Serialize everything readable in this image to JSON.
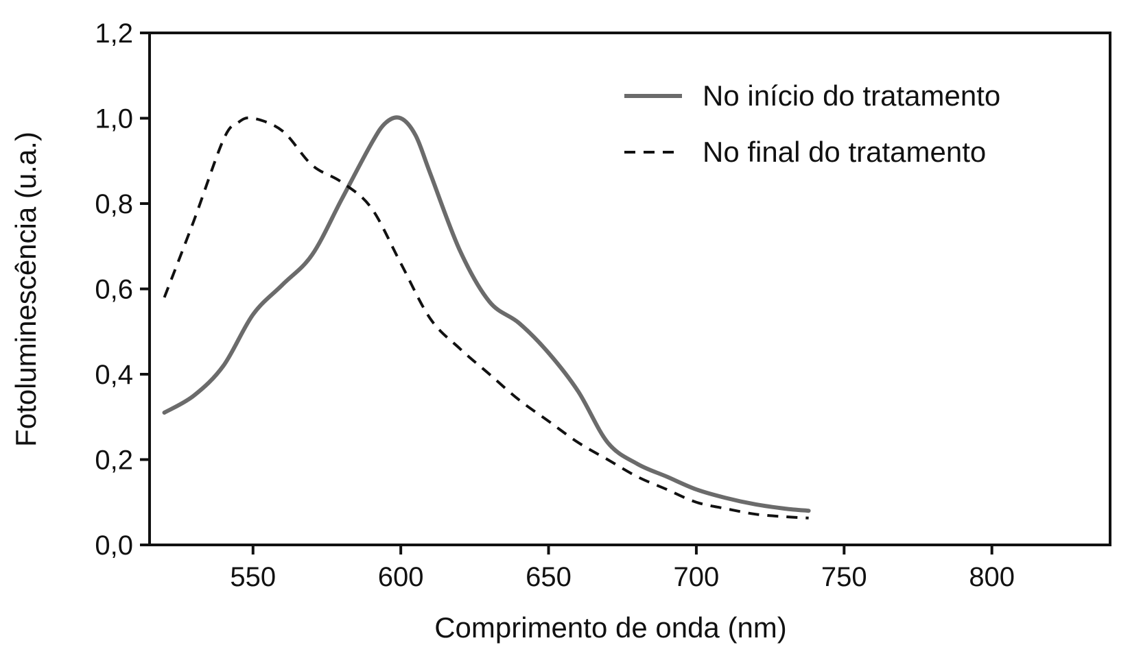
{
  "chart_data": {
    "type": "line",
    "title": "",
    "xlabel": "Comprimento de onda (nm)",
    "ylabel": "Fotoluminescência (u.a.)",
    "xlim": [
      515,
      840
    ],
    "ylim": [
      0,
      1.2
    ],
    "x_ticks": [
      550,
      600,
      650,
      700,
      750,
      800
    ],
    "y_ticks": [
      0.0,
      0.2,
      0.4,
      0.6,
      0.8,
      1.0,
      1.2
    ],
    "x_tick_labels": [
      "550",
      "600",
      "650",
      "700",
      "750",
      "800"
    ],
    "y_tick_labels": [
      "0,0",
      "0,2",
      "0,4",
      "0,6",
      "0,8",
      "1,0",
      "1,2"
    ],
    "grid": false,
    "legend_position": "top-right",
    "series": [
      {
        "name": "No início do tratamento",
        "style": "solid",
        "color": "#6b6b6b",
        "x": [
          520,
          530,
          540,
          550,
          560,
          570,
          580,
          590,
          595,
          600,
          605,
          610,
          620,
          630,
          640,
          650,
          660,
          670,
          680,
          690,
          700,
          710,
          720,
          730,
          738
        ],
        "y": [
          0.31,
          0.35,
          0.42,
          0.54,
          0.61,
          0.68,
          0.81,
          0.94,
          0.99,
          1.0,
          0.96,
          0.87,
          0.69,
          0.57,
          0.52,
          0.45,
          0.36,
          0.24,
          0.19,
          0.16,
          0.13,
          0.11,
          0.095,
          0.085,
          0.08
        ]
      },
      {
        "name": "No final do tratamento",
        "style": "dashed",
        "color": "#111111",
        "x": [
          520,
          530,
          540,
          545,
          550,
          560,
          570,
          580,
          590,
          600,
          610,
          620,
          630,
          640,
          650,
          660,
          670,
          680,
          690,
          700,
          710,
          720,
          730,
          738
        ],
        "y": [
          0.58,
          0.76,
          0.95,
          0.99,
          1.0,
          0.97,
          0.89,
          0.85,
          0.79,
          0.66,
          0.53,
          0.46,
          0.4,
          0.34,
          0.29,
          0.24,
          0.2,
          0.16,
          0.13,
          0.1,
          0.085,
          0.072,
          0.066,
          0.063
        ]
      }
    ]
  }
}
